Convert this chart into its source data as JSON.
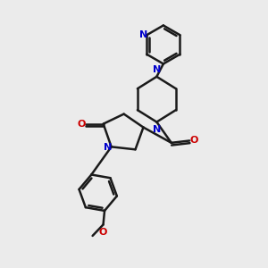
{
  "bg_color": "#ebebeb",
  "bond_color": "#1a1a1a",
  "N_color": "#0000cc",
  "O_color": "#cc0000",
  "bond_width": 1.8,
  "figsize": [
    3.0,
    3.0
  ],
  "dpi": 100,
  "xlim": [
    0,
    10
  ],
  "ylim": [
    0,
    10
  ]
}
